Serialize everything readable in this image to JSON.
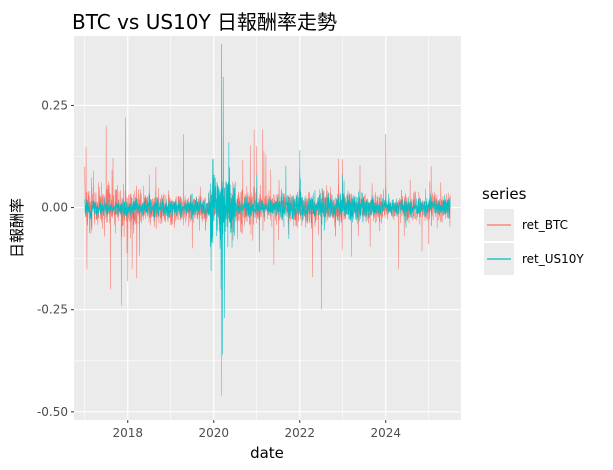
{
  "chart_data": {
    "type": "line",
    "title": "BTC vs US10Y 日報酬率走勢",
    "xlabel": "date",
    "ylabel": "日報酬率",
    "x_ticks": [
      "2018",
      "2020",
      "2022",
      "2024"
    ],
    "x_tick_values": [
      2018,
      2020,
      2022,
      2024
    ],
    "y_ticks": [
      "0.25",
      "0.00",
      "-0.25",
      "-0.50"
    ],
    "y_tick_values": [
      0.25,
      0.0,
      -0.25,
      -0.5
    ],
    "xlim": [
      2016.75,
      2025.75
    ],
    "ylim": [
      -0.52,
      0.42
    ],
    "x_range": [
      2017.0,
      2025.5
    ],
    "grid": true,
    "legend": {
      "title": "series",
      "position": "right"
    },
    "series": [
      {
        "name": "ret_BTC",
        "color": "#F8766D",
        "description_points": [
          [
            2017.0,
            0.1
          ],
          [
            2017.05,
            -0.15
          ],
          [
            2017.5,
            0.2
          ],
          [
            2017.6,
            -0.2
          ],
          [
            2017.85,
            -0.24
          ],
          [
            2017.95,
            0.22
          ],
          [
            2018.0,
            -0.18
          ],
          [
            2018.1,
            -0.15
          ],
          [
            2018.5,
            0.08
          ],
          [
            2019.3,
            0.18
          ],
          [
            2019.5,
            -0.1
          ],
          [
            2020.0,
            0.12
          ],
          [
            2020.18,
            -0.46
          ],
          [
            2020.22,
            0.17
          ],
          [
            2021.0,
            0.15
          ],
          [
            2021.4,
            -0.14
          ],
          [
            2022.3,
            -0.17
          ],
          [
            2022.5,
            -0.25
          ],
          [
            2022.9,
            0.12
          ],
          [
            2023.2,
            -0.12
          ],
          [
            2024.0,
            0.18
          ],
          [
            2024.3,
            -0.15
          ],
          [
            2025.0,
            -0.09
          ],
          [
            2025.5,
            0.03
          ]
        ]
      },
      {
        "name": "ret_US10Y",
        "color": "#00BFC4",
        "description_points": [
          [
            2017.0,
            0.02
          ],
          [
            2018.5,
            0.04
          ],
          [
            2019.5,
            -0.03
          ],
          [
            2020.17,
            -0.2
          ],
          [
            2020.18,
            0.4
          ],
          [
            2020.2,
            -0.36
          ],
          [
            2020.22,
            0.32
          ],
          [
            2020.25,
            -0.27
          ],
          [
            2020.35,
            0.16
          ],
          [
            2021.0,
            0.08
          ],
          [
            2022.0,
            0.14
          ],
          [
            2022.5,
            -0.08
          ],
          [
            2023.0,
            0.08
          ],
          [
            2024.0,
            0.05
          ],
          [
            2025.5,
            0.02
          ]
        ]
      }
    ]
  }
}
